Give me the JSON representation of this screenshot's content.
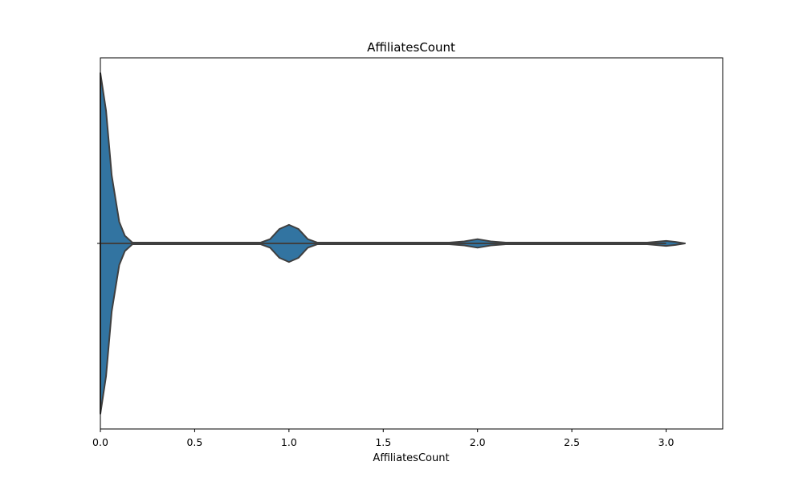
{
  "chart_data": {
    "type": "violin",
    "orientation": "horizontal",
    "title": "AffiliatesCount",
    "xlabel": "AffiliatesCount",
    "ylabel": "",
    "xlim": [
      0,
      3.3
    ],
    "x_ticks": [
      0.0,
      0.5,
      1.0,
      1.5,
      2.0,
      2.5,
      3.0
    ],
    "x_tick_labels": [
      "0.0",
      "0.5",
      "1.0",
      "1.5",
      "2.0",
      "2.5",
      "3.0"
    ],
    "grid": false,
    "legend": false,
    "color": "#3274a1",
    "edge_color": "#3f3f3f",
    "density_profile": [
      {
        "x": 0.0,
        "density": 1.0
      },
      {
        "x": 0.03,
        "density": 0.78
      },
      {
        "x": 0.06,
        "density": 0.4
      },
      {
        "x": 0.1,
        "density": 0.127
      },
      {
        "x": 0.13,
        "density": 0.045
      },
      {
        "x": 0.17,
        "density": 0.005
      },
      {
        "x": 0.3,
        "density": 0.005
      },
      {
        "x": 0.85,
        "density": 0.005
      },
      {
        "x": 0.9,
        "density": 0.025
      },
      {
        "x": 0.95,
        "density": 0.085
      },
      {
        "x": 1.0,
        "density": 0.109
      },
      {
        "x": 1.05,
        "density": 0.085
      },
      {
        "x": 1.1,
        "density": 0.025
      },
      {
        "x": 1.15,
        "density": 0.005
      },
      {
        "x": 1.85,
        "density": 0.005
      },
      {
        "x": 1.93,
        "density": 0.012
      },
      {
        "x": 2.0,
        "density": 0.025
      },
      {
        "x": 2.07,
        "density": 0.012
      },
      {
        "x": 2.15,
        "density": 0.005
      },
      {
        "x": 2.9,
        "density": 0.005
      },
      {
        "x": 3.0,
        "density": 0.015
      },
      {
        "x": 3.05,
        "density": 0.009
      },
      {
        "x": 3.1,
        "density": 0.0
      }
    ]
  }
}
